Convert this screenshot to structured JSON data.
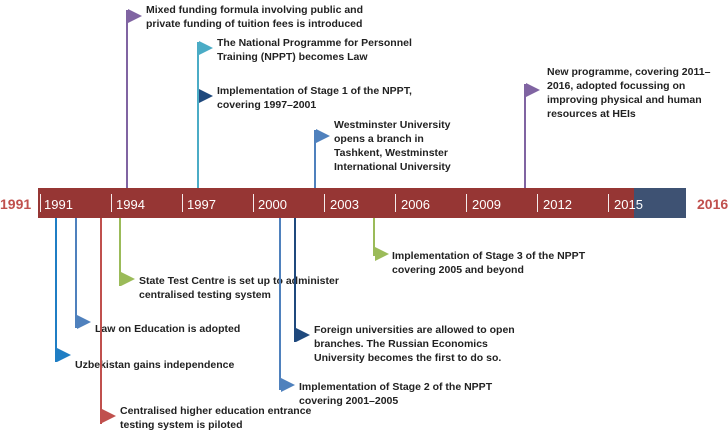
{
  "timeline": {
    "start_label": "1991",
    "end_label": "2016",
    "years": [
      "1991",
      "1994",
      "1997",
      "2000",
      "2003",
      "2006",
      "2009",
      "2012",
      "2015"
    ],
    "colors": {
      "bar": "#963634",
      "bar_end": "#3e5273",
      "end_labels": "#c0504d"
    }
  },
  "events": [
    {
      "id": "funding",
      "color": "#8064a2",
      "text": "Mixed funding formula involving public and private funding of tuition fees is introduced"
    },
    {
      "id": "nppt",
      "color": "#4bacc6",
      "text": "The National Programme for Personnel Training (NPPT) becomes Law"
    },
    {
      "id": "stage1",
      "color": "#1f497d",
      "text": "Implementation of Stage 1 of the NPPT, covering 1997–2001"
    },
    {
      "id": "westminster",
      "color": "#4f81bd",
      "text": "Westminster University opens a branch in Tashkent, Westminster International University"
    },
    {
      "id": "newprog",
      "color": "#8064a2",
      "text": "New programme, covering 2011–2016, adopted focussing on improving physical and human resources at HEIs"
    },
    {
      "id": "stage3",
      "color": "#9bbb59",
      "text": "Implementation of Stage 3 of the NPPT covering 2005 and beyond"
    },
    {
      "id": "testcentre",
      "color": "#9bbb59",
      "text": "State Test Centre is set up to administer centralised testing system"
    },
    {
      "id": "lawedu",
      "color": "#4f81bd",
      "text": "Law on Education is adopted"
    },
    {
      "id": "foreign",
      "color": "#1f497d",
      "text": "Foreign universities are allowed to open branches. The Russian Economics University becomes the first to do so."
    },
    {
      "id": "independence",
      "color": "#1f7ec4",
      "text": "Uzbekistan gains independence"
    },
    {
      "id": "stage2",
      "color": "#4f81bd",
      "text": "Implementation of Stage 2 of the NPPT covering 2001–2005"
    },
    {
      "id": "entrance",
      "color": "#c0504d",
      "text": "Centralised higher education entrance testing system is piloted"
    }
  ]
}
